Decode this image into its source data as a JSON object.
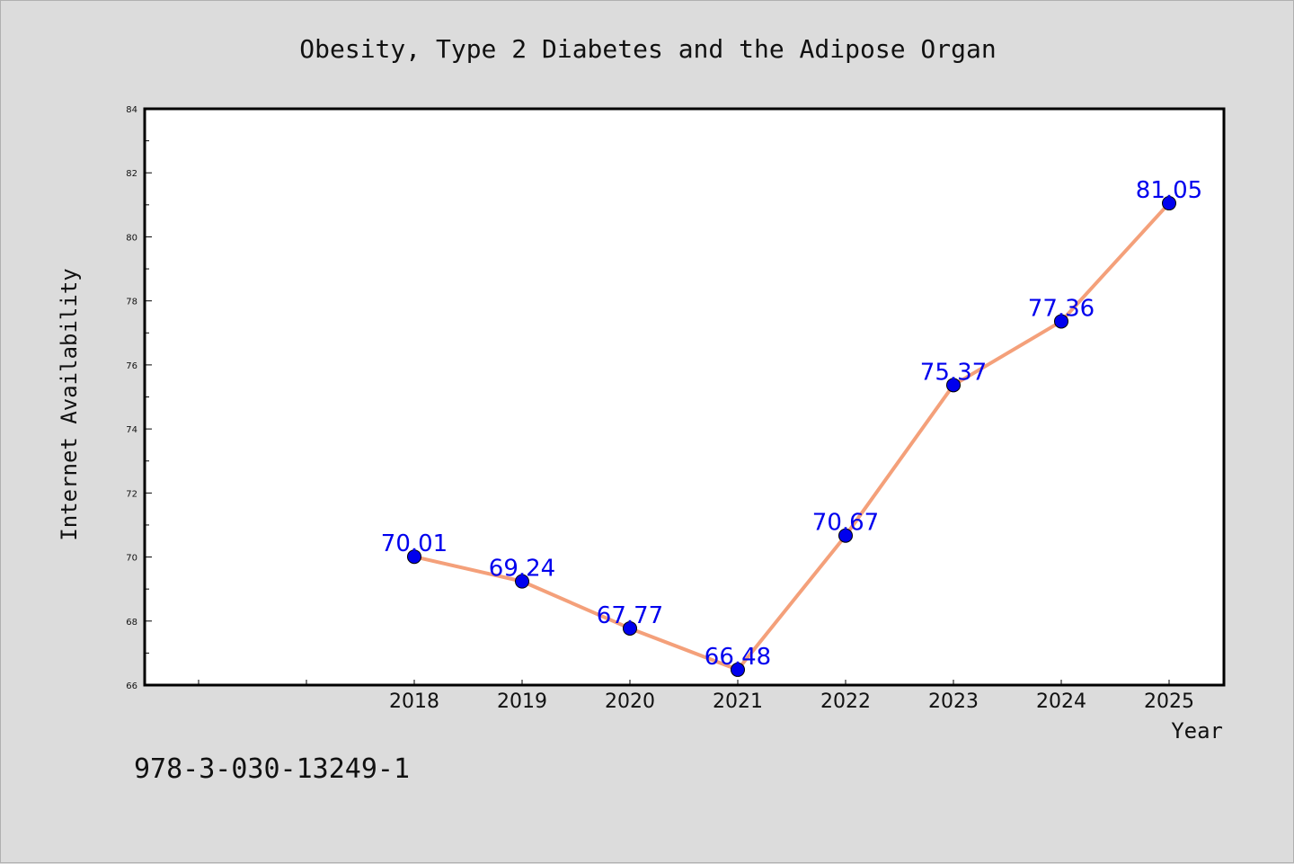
{
  "chart_data": {
    "type": "line",
    "title": "Obesity, Type 2 Diabetes and the Adipose Organ",
    "xlabel": "Year",
    "ylabel": "Internet Availability",
    "x": [
      "2018",
      "2019",
      "2020",
      "2021",
      "2022",
      "2023",
      "2024",
      "2025"
    ],
    "series": [
      {
        "values": [
          70.01,
          69.24,
          67.77,
          66.48,
          70.67,
          75.37,
          77.36,
          81.05
        ],
        "labels": [
          "70.01",
          "69.24",
          "67.77",
          "66.48",
          "70.67",
          "75.37",
          "77.36",
          "81.05"
        ]
      }
    ],
    "ylim": [
      66,
      84
    ],
    "yticks": [
      "66",
      "68",
      "70",
      "72",
      "74",
      "76",
      "78",
      "80",
      "82",
      "84"
    ],
    "grid": false,
    "line_color": "#f4a07a",
    "marker_color": "#0000ee",
    "label_color": "#0000ee"
  },
  "footer": {
    "isbn": "978-3-030-13249-1"
  }
}
